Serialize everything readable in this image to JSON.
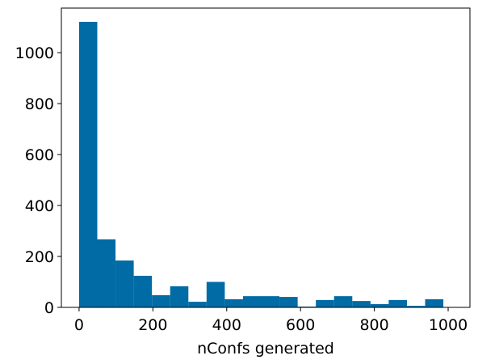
{
  "chart_data": {
    "type": "histogram",
    "x_label": "nConfs generated",
    "color": "#006ba4",
    "bins": [
      0,
      49.35,
      98.7,
      148.05,
      197.4,
      246.75,
      296.1,
      345.45,
      394.8,
      444.15,
      493.5,
      542.85,
      592.2,
      641.55,
      690.9,
      740.25,
      789.6,
      838.95,
      888.3,
      937.65,
      987
    ],
    "values": [
      1121,
      267,
      184,
      124,
      48,
      83,
      22,
      100,
      32,
      44,
      44,
      41,
      3,
      29,
      44,
      25,
      13,
      29,
      6,
      32
    ],
    "xlim": [
      -48,
      1059
    ],
    "ylim": [
      0,
      1175
    ],
    "xticks": [
      0,
      200,
      400,
      600,
      800,
      1000
    ],
    "yticks": [
      0,
      200,
      400,
      600,
      800,
      1000
    ]
  }
}
